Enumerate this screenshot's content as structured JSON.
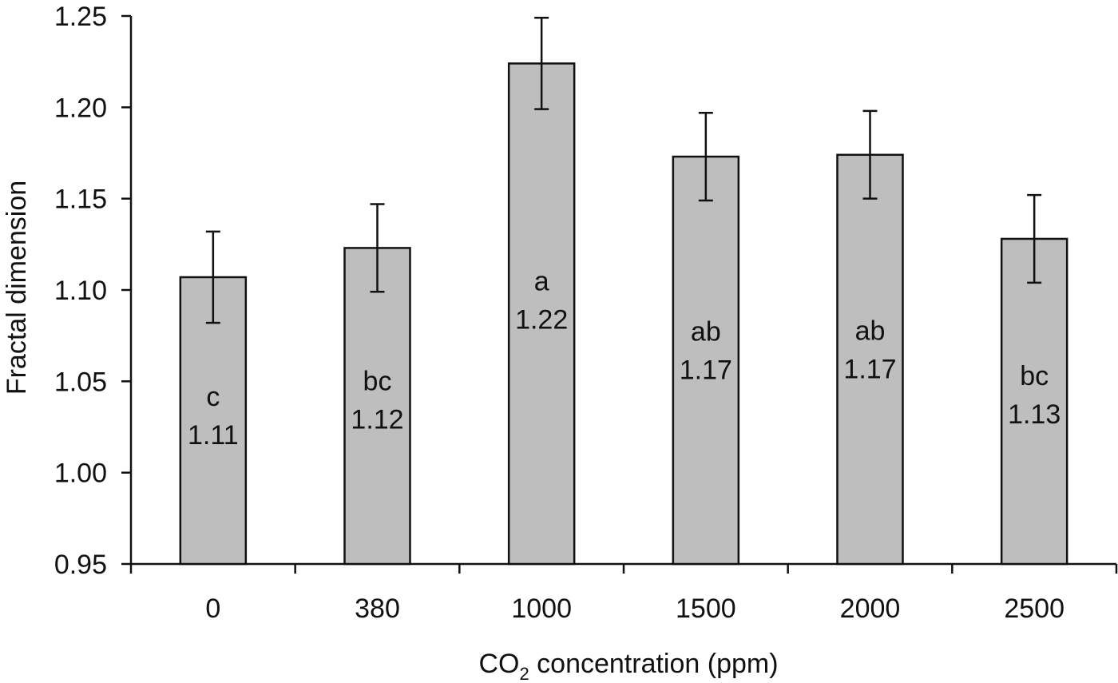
{
  "chart_data": {
    "type": "bar",
    "title": "",
    "xlabel": "concentration (ppm)",
    "xlabel_prefix": "CO",
    "xlabel_subscript": "2",
    "ylabel": "Fractal dimension",
    "categories": [
      "0",
      "380",
      "1000",
      "1500",
      "2000",
      "2500"
    ],
    "values": [
      1.107,
      1.123,
      1.224,
      1.173,
      1.174,
      1.128
    ],
    "errors": [
      0.025,
      0.024,
      0.025,
      0.024,
      0.024,
      0.024
    ],
    "letters": [
      "c",
      "bc",
      "a",
      "ab",
      "ab",
      "bc"
    ],
    "value_labels": [
      "1.11",
      "1.12",
      "1.22",
      "1.17",
      "1.17",
      "1.13"
    ],
    "ylim": [
      0.95,
      1.25
    ],
    "yticks": [
      "0.95",
      "1.00",
      "1.05",
      "1.10",
      "1.15",
      "1.20",
      "1.25"
    ],
    "grid": false,
    "legend": "none",
    "colors": {
      "bar": "#bebebe",
      "stroke": "#111111"
    }
  }
}
